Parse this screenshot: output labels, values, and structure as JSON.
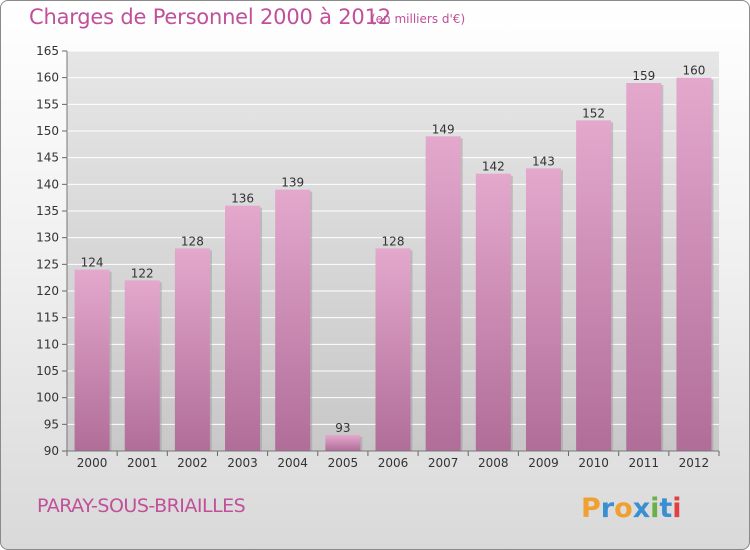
{
  "header": {
    "title": "Charges de Personnel 2000 à 2012",
    "subtitle": "(en milliers d'€)"
  },
  "footer": {
    "place": "PARAY-SOUS-BRIAILLES",
    "logo_text": "Proxiti"
  },
  "colors": {
    "accent": "#c0509a",
    "bar_top": "#e4a8cd",
    "bar_bottom": "#b06d98",
    "plot_bg_top": "#e6e6e6",
    "plot_bg_bottom": "#c8c8c8",
    "gridline": "#ffffff",
    "logo_letters": [
      "#f0a030",
      "#3a8fd0",
      "#f0a030",
      "#3a8fd0",
      "#6ab04a",
      "#3a8fd0",
      "#e04040"
    ]
  },
  "chart_data": {
    "type": "bar",
    "title": "Charges de Personnel 2000 à 2012",
    "subtitle": "(en milliers d'€)",
    "categories": [
      "2000",
      "2001",
      "2002",
      "2003",
      "2004",
      "2005",
      "2006",
      "2007",
      "2008",
      "2009",
      "2010",
      "2011",
      "2012"
    ],
    "values": [
      124,
      122,
      128,
      136,
      139,
      93,
      128,
      149,
      142,
      143,
      152,
      159,
      160
    ],
    "ylim": [
      90,
      165
    ],
    "yticks": [
      90,
      95,
      100,
      105,
      110,
      115,
      120,
      125,
      130,
      135,
      140,
      145,
      150,
      155,
      160,
      165
    ],
    "grid": true,
    "data_labels": true,
    "legend": "none"
  }
}
